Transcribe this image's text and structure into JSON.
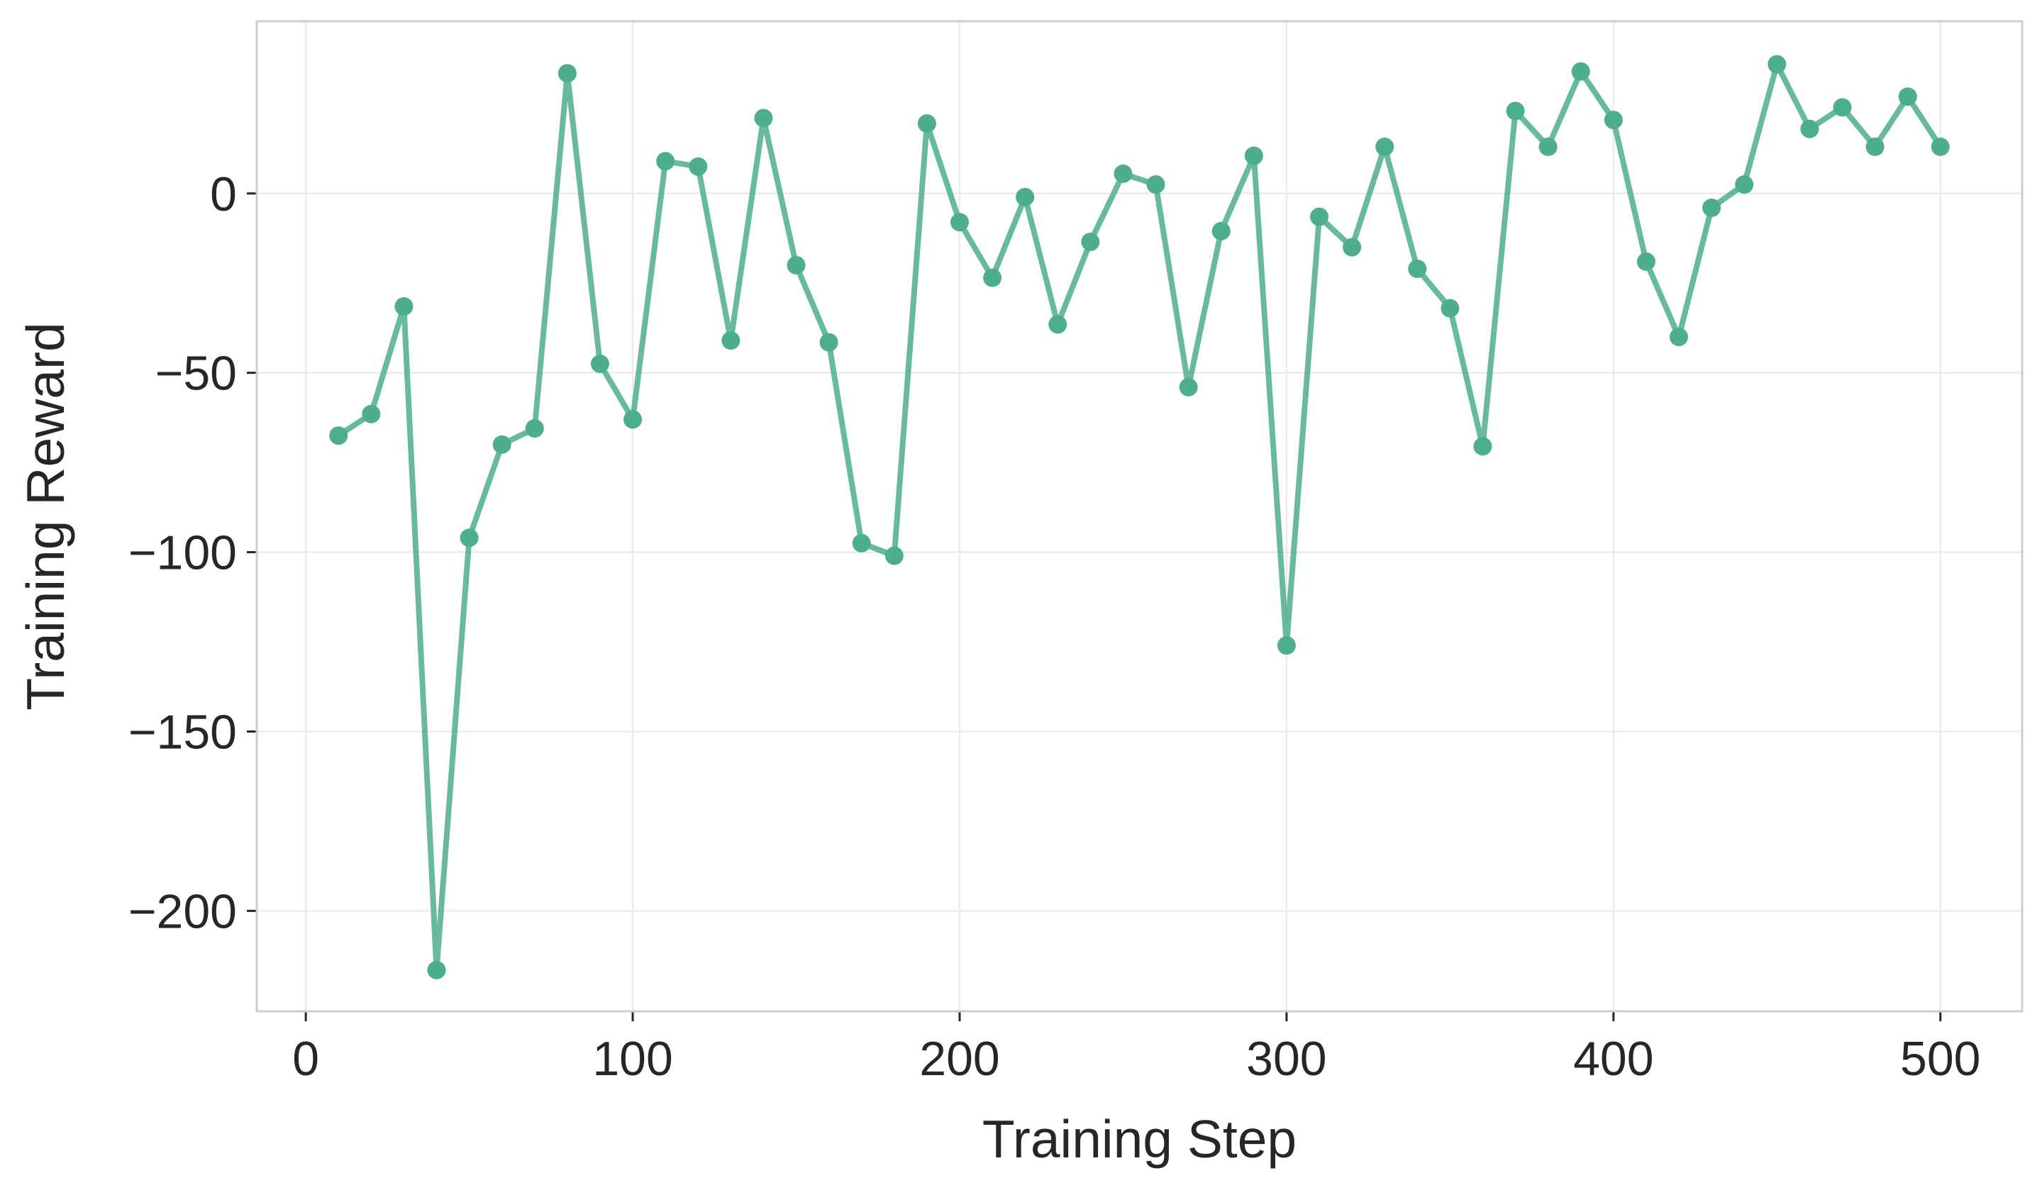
{
  "chart_data": {
    "type": "line",
    "title": "",
    "xlabel": "Training Step",
    "ylabel": "Training Reward",
    "xlim": [
      -15,
      525
    ],
    "ylim": [
      -228,
      48
    ],
    "xticks": [
      0,
      100,
      200,
      300,
      400,
      500
    ],
    "yticks": [
      0,
      -50,
      -100,
      -150,
      -200
    ],
    "xtick_labels": [
      "0",
      "100",
      "200",
      "300",
      "400",
      "500"
    ],
    "ytick_labels": [
      "0",
      "−50",
      "−100",
      "−150",
      "−200"
    ],
    "grid": true,
    "legend": "none",
    "colors": {
      "series": "#4cae8a",
      "grid": "#ebebeb",
      "frame": "#cccccc",
      "text": "#262626"
    },
    "series": [
      {
        "x": [
          10,
          20,
          30,
          40,
          50,
          60,
          70,
          80,
          90,
          100,
          110,
          120,
          130,
          140,
          150,
          160,
          170,
          180,
          190,
          200,
          210,
          220,
          230,
          240,
          250,
          260,
          270,
          280,
          290,
          300,
          310,
          320,
          330,
          340,
          350,
          360,
          370,
          380,
          390,
          400,
          410,
          420,
          430,
          440,
          450,
          460,
          470,
          480,
          490,
          500
        ],
        "y": [
          -67.5,
          -61.5,
          -31.5,
          -216.5,
          -96,
          -70,
          -65.5,
          33.5,
          -47.5,
          -63,
          9,
          7.5,
          -41,
          21,
          -20,
          -41.5,
          -97.5,
          -101,
          19.5,
          -8,
          -23.5,
          -1,
          -36.5,
          -13.5,
          5.5,
          2.5,
          -54,
          -10.5,
          10.5,
          -126,
          -6.5,
          -15,
          13,
          -21,
          -32,
          -70.5,
          23,
          13,
          34,
          20.5,
          -19,
          -40,
          -4,
          2.5,
          36,
          18,
          24,
          13,
          27,
          13
        ]
      }
    ]
  }
}
